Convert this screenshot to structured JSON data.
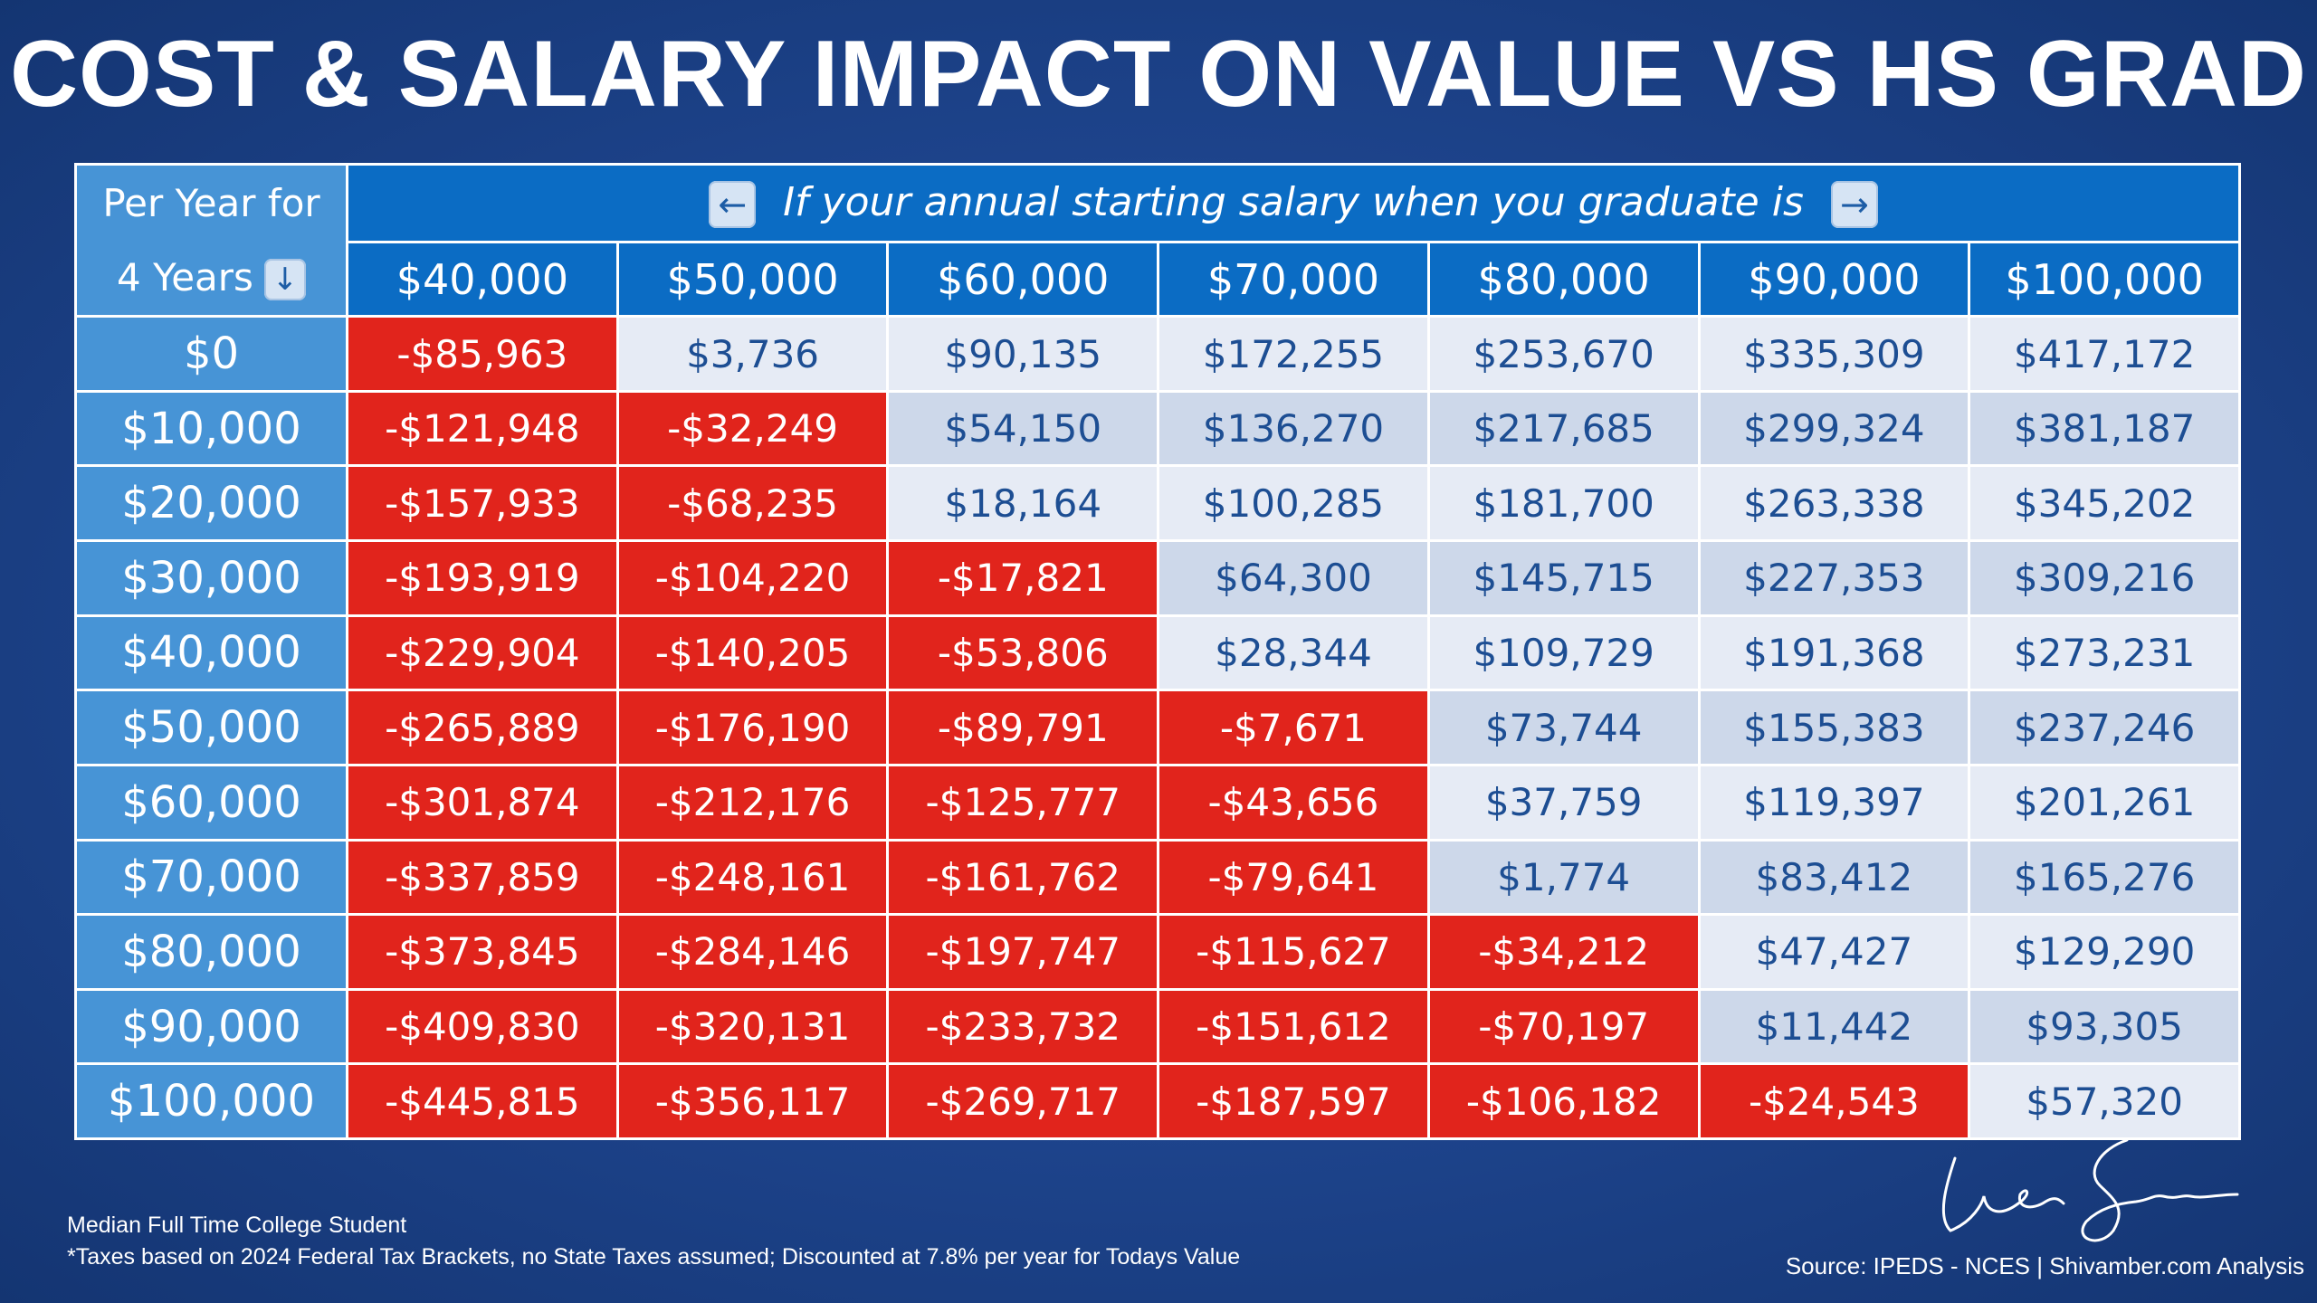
{
  "title": "COST & SALARY IMPACT ON VALUE VS HS GRAD",
  "corner": {
    "line1": "Per Year for",
    "line2": "4 Years"
  },
  "banner": "If your annual starting salary when you graduate is",
  "icons": {
    "left": "left-arrow-icon",
    "right": "right-arrow-icon",
    "down": "down-arrow-icon"
  },
  "colors": {
    "negative": "#e1241c",
    "positive_light": "#e6ebf5",
    "positive_dark": "#cdd8ea",
    "header": "#0b6cc4",
    "row_header": "#4794d6"
  },
  "salaries": [
    "$40,000",
    "$50,000",
    "$60,000",
    "$70,000",
    "$80,000",
    "$90,000",
    "$100,000"
  ],
  "rows": [
    {
      "cost": "$0",
      "values": [
        "-$85,963",
        "$3,736",
        "$90,135",
        "$172,255",
        "$253,670",
        "$335,309",
        "$417,172"
      ]
    },
    {
      "cost": "$10,000",
      "values": [
        "-$121,948",
        "-$32,249",
        "$54,150",
        "$136,270",
        "$217,685",
        "$299,324",
        "$381,187"
      ]
    },
    {
      "cost": "$20,000",
      "values": [
        "-$157,933",
        "-$68,235",
        "$18,164",
        "$100,285",
        "$181,700",
        "$263,338",
        "$345,202"
      ]
    },
    {
      "cost": "$30,000",
      "values": [
        "-$193,919",
        "-$104,220",
        "-$17,821",
        "$64,300",
        "$145,715",
        "$227,353",
        "$309,216"
      ]
    },
    {
      "cost": "$40,000",
      "values": [
        "-$229,904",
        "-$140,205",
        "-$53,806",
        "$28,344",
        "$109,729",
        "$191,368",
        "$273,231"
      ]
    },
    {
      "cost": "$50,000",
      "values": [
        "-$265,889",
        "-$176,190",
        "-$89,791",
        "-$7,671",
        "$73,744",
        "$155,383",
        "$237,246"
      ]
    },
    {
      "cost": "$60,000",
      "values": [
        "-$301,874",
        "-$212,176",
        "-$125,777",
        "-$43,656",
        "$37,759",
        "$119,397",
        "$201,261"
      ]
    },
    {
      "cost": "$70,000",
      "values": [
        "-$337,859",
        "-$248,161",
        "-$161,762",
        "-$79,641",
        "$1,774",
        "$83,412",
        "$165,276"
      ]
    },
    {
      "cost": "$80,000",
      "values": [
        "-$373,845",
        "-$284,146",
        "-$197,747",
        "-$115,627",
        "-$34,212",
        "$47,427",
        "$129,290"
      ]
    },
    {
      "cost": "$90,000",
      "values": [
        "-$409,830",
        "-$320,131",
        "-$233,732",
        "-$151,612",
        "-$70,197",
        "$11,442",
        "$93,305"
      ]
    },
    {
      "cost": "$100,000",
      "values": [
        "-$445,815",
        "-$356,117",
        "-$269,717",
        "-$187,597",
        "-$106,182",
        "-$24,543",
        "$57,320"
      ]
    }
  ],
  "footer": {
    "note1": "Median Full Time College Student",
    "note2": "*Taxes based on 2024 Federal Tax Brackets, no State Taxes assumed; Discounted at 7.8% per year for Todays Value",
    "source": "Source: IPEDS - NCES | Shivamber.com Analysis",
    "signature_icon": "signature-icon"
  }
}
